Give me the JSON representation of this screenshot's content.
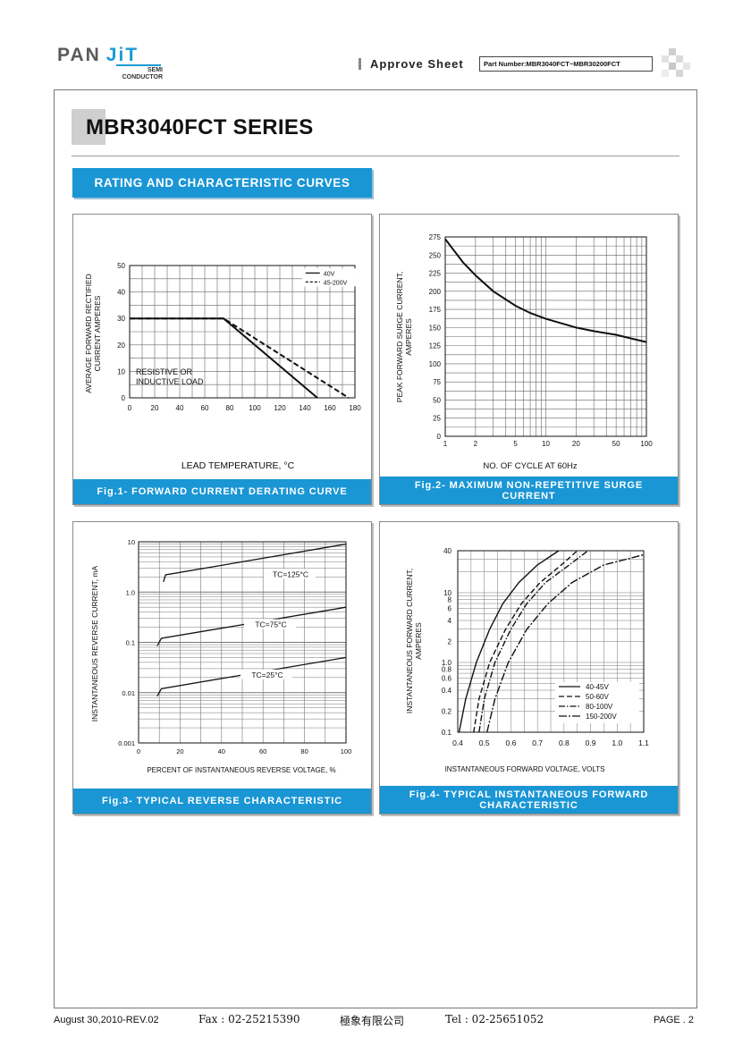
{
  "header": {
    "logo_pan": "PAN",
    "logo_jit": "JiT",
    "logo_semi": "SEMI",
    "logo_conductor": "CONDUCTOR",
    "approve_label": "Approve Sheet",
    "part_number": "Part Number:MBR3040FCT~MBR30200FCT"
  },
  "title": "MBR3040FCT SERIES",
  "section": "RATING AND CHARACTERISTIC CURVES",
  "figures": {
    "fig1": {
      "caption": "Fig.1- FORWARD CURRENT DERATING CURVE",
      "ylabel_line1": "AVERAGE FORWARD RECTIFIED",
      "ylabel_line2": "CURRENT AMPERES",
      "xlabel": "LEAD TEMPERATURE, °C",
      "annotation_line1": "RESISTIVE OR",
      "annotation_line2": "INDUCTIVE LOAD"
    },
    "fig2": {
      "caption": "Fig.2- MAXIMUM NON-REPETITIVE SURGE\nCURRENT",
      "ylabel_line1": "PEAK FORWARD SURGE CURRENT,",
      "ylabel_line2": "AMPERES",
      "xlabel": "NO. OF CYCLE AT 60Hz"
    },
    "fig3": {
      "caption": "Fig.3- TYPICAL REVERSE CHARACTERISTIC",
      "ylabel": "INSTANTANEOUS REVERSE CURRENT, mA",
      "xlabel": "PERCENT OF INSTANTANEOUS REVERSE VOLTAGE, %"
    },
    "fig4": {
      "caption": "Fig.4- TYPICAL INSTANTANEOUS FORWARD\nCHARACTERISTIC",
      "ylabel_line1": "INSTANTANEOUS FORWARD CURRENT,",
      "ylabel_line2": "AMPERES",
      "xlabel": "INSTANTANEOUS FORWARD VOLTAGE, VOLTS"
    }
  },
  "footer": {
    "date": "August 30,2010-REV.02",
    "fax": "Fax : 02-25215390",
    "company": "極象有限公司",
    "tel": "Tel : 02-25651052",
    "page": "PAGE . 2"
  },
  "colors": {
    "accent": "#1a96d5",
    "logo_gray": "#5a5a5a"
  },
  "chart_data": [
    {
      "type": "line",
      "id": "fig1",
      "xlabel": "LEAD TEMPERATURE, °C",
      "ylabel": "AVERAGE FORWARD RECTIFIED CURRENT AMPERES",
      "xlim": [
        0,
        180
      ],
      "ylim": [
        0,
        50
      ],
      "x_ticks": [
        0,
        20,
        40,
        60,
        80,
        100,
        120,
        140,
        160,
        180
      ],
      "y_ticks": [
        0,
        10,
        20,
        30,
        40,
        50
      ],
      "grid": true,
      "legend": "top-right",
      "series": [
        {
          "name": "40V",
          "style": "solid",
          "x": [
            0,
            75,
            150
          ],
          "y": [
            30,
            30,
            0
          ]
        },
        {
          "name": "45-200V",
          "style": "dashed",
          "x": [
            0,
            75,
            175
          ],
          "y": [
            30,
            30,
            0
          ]
        }
      ]
    },
    {
      "type": "line",
      "id": "fig2",
      "xlabel": "NO. OF CYCLE AT 60Hz",
      "ylabel": "PEAK FORWARD SURGE CURRENT, AMPERES",
      "x_scale": "log",
      "xlim": [
        1,
        100
      ],
      "ylim": [
        0,
        275
      ],
      "x_ticks": [
        1,
        2,
        5,
        10,
        20,
        50,
        100
      ],
      "y_ticks": [
        0,
        25,
        50,
        75,
        100,
        125,
        150,
        175,
        200,
        225,
        250,
        275
      ],
      "grid": true,
      "series": [
        {
          "x": [
            1,
            1.5,
            2,
            3,
            5,
            7,
            10,
            15,
            20,
            30,
            50,
            70,
            100
          ],
          "y": [
            272,
            240,
            222,
            200,
            180,
            170,
            162,
            155,
            150,
            145,
            140,
            135,
            130
          ]
        }
      ]
    },
    {
      "type": "line",
      "id": "fig3",
      "xlabel": "PERCENT OF INSTANTANEOUS REVERSE VOLTAGE, %",
      "ylabel": "INSTANTANEOUS REVERSE CURRENT, mA",
      "y_scale": "log",
      "xlim": [
        0,
        100
      ],
      "ylim": [
        0.001,
        10
      ],
      "x_ticks": [
        0,
        20,
        40,
        60,
        80,
        100
      ],
      "y_ticks": [
        "0.001",
        "0.01",
        "0.1",
        "1.0",
        "10"
      ],
      "grid": true,
      "series": [
        {
          "name": "TC=125°C",
          "x": [
            12,
            13,
            100
          ],
          "y": [
            1.6,
            2.2,
            9.0
          ]
        },
        {
          "name": "TC=75°C",
          "x": [
            9,
            11,
            100
          ],
          "y": [
            0.085,
            0.12,
            0.5
          ]
        },
        {
          "name": "TC=25°C",
          "x": [
            9,
            11,
            100
          ],
          "y": [
            0.0085,
            0.012,
            0.05
          ]
        }
      ]
    },
    {
      "type": "line",
      "id": "fig4",
      "xlabel": "INSTANTANEOUS FORWARD VOLTAGE, VOLTS",
      "ylabel": "INSTANTANEOUS FORWARD CURRENT, AMPERES",
      "y_scale": "log",
      "xlim": [
        0.4,
        1.1
      ],
      "ylim": [
        0.1,
        40
      ],
      "x_ticks": [
        "0.4",
        "0.5",
        "0.6",
        "0.7",
        "0.8",
        "0.9",
        "1.0",
        "1.1"
      ],
      "y_ticks": [
        "0.1",
        "0.2",
        "0.4",
        "0.6",
        "0.8",
        "1.0",
        "2",
        "4",
        "6",
        "8",
        "10",
        "40"
      ],
      "grid": true,
      "legend": "bottom-right",
      "series": [
        {
          "name": "40-45V",
          "style": "solid",
          "x": [
            0.405,
            0.43,
            0.47,
            0.52,
            0.57,
            0.63,
            0.7,
            0.78
          ],
          "y": [
            0.1,
            0.3,
            1.0,
            3,
            7,
            14,
            25,
            40
          ]
        },
        {
          "name": "50-60V",
          "style": "dashed",
          "x": [
            0.46,
            0.48,
            0.52,
            0.58,
            0.64,
            0.71,
            0.79,
            0.85
          ],
          "y": [
            0.1,
            0.3,
            1.0,
            3,
            7,
            14,
            25,
            40
          ]
        },
        {
          "name": "80-100V",
          "style": "dashdot",
          "x": [
            0.48,
            0.5,
            0.54,
            0.6,
            0.66,
            0.73,
            0.82,
            0.89
          ],
          "y": [
            0.1,
            0.3,
            1.0,
            3,
            7,
            14,
            25,
            40
          ]
        },
        {
          "name": "150-200V",
          "style": "dashdotlong",
          "x": [
            0.51,
            0.54,
            0.59,
            0.66,
            0.74,
            0.83,
            0.95,
            1.1
          ],
          "y": [
            0.1,
            0.3,
            1.0,
            3,
            7,
            14,
            25,
            35
          ]
        }
      ]
    }
  ]
}
